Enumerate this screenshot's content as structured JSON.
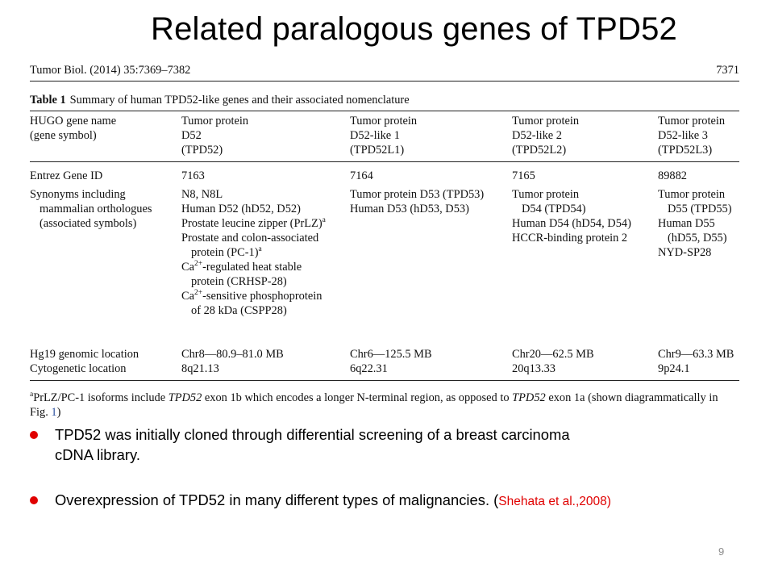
{
  "slide": {
    "title": "Related paralogous genes of  TPD52",
    "page_number": "9"
  },
  "paper": {
    "journal": "Tumor Biol. (2014) 35:7369–7382",
    "page": "7371",
    "caption_label": "Table 1",
    "caption_text": "Summary of human TPD52-like genes and their associated nomenclature",
    "header": {
      "label": [
        "HUGO gene name",
        "(gene symbol)"
      ],
      "genes": [
        [
          "Tumor protein",
          "D52",
          "(TPD52)"
        ],
        [
          "Tumor protein",
          "D52-like 1",
          "(TPD52L1)"
        ],
        [
          "Tumor protein",
          "D52-like 2",
          "(TPD52L2)"
        ],
        [
          "Tumor protein",
          "D52-like 3",
          "(TPD52L3)"
        ]
      ]
    },
    "entrez": {
      "label": "Entrez Gene ID",
      "values": [
        "7163",
        "7164",
        "7165",
        "89882"
      ]
    },
    "synonyms": {
      "label": [
        "Synonyms including",
        "mammalian orthologues",
        "(associated symbols)"
      ],
      "col1": [
        "N8, N8L",
        "Human D52 (hD52, D52)",
        "Prostate leucine zipper (PrLZ)",
        "Prostate and colon-associated",
        "protein (PC-1)",
        "Ca",
        "-regulated heat stable",
        "protein (CRHSP-28)",
        "Ca",
        "-sensitive phosphoprotein",
        "of 28 kDa (CSPP28)"
      ],
      "sup": {
        "a": "a",
        "ca": "2+"
      },
      "col2": [
        "Tumor protein D53 (TPD53)",
        "Human D53 (hD53, D53)"
      ],
      "col3": [
        "Tumor protein",
        "D54 (TPD54)",
        "Human D54 (hD54, D54)",
        "HCCR-binding protein 2"
      ],
      "col4": [
        "Tumor protein",
        "D55 (TPD55)",
        "Human D55",
        "(hD55, D55)",
        "NYD-SP28"
      ]
    },
    "hg19": {
      "label": "Hg19 genomic location",
      "values": [
        "Chr8—80.9–81.0 MB",
        "Chr6—125.5 MB",
        "Chr20—62.5 MB",
        "Chr9—63.3 MB"
      ]
    },
    "cyto": {
      "label": "Cytogenetic location",
      "values": [
        "8q21.13",
        "6q22.31",
        "20q13.33",
        "9p24.1"
      ]
    },
    "footnote": {
      "mark": "a",
      "t1": "PrLZ/PC-1 isoforms include ",
      "i1": "TPD52",
      "t2": " exon 1b which encodes a longer N-terminal region, as opposed to ",
      "i2": "TPD52",
      "t3": " exon 1a (shown diagrammatically in",
      "fig": "Fig.",
      "fignum": "1",
      "close": ")"
    }
  },
  "bullets": [
    {
      "line1": "TPD52 was initially cloned through differential screening of a  breast carcinoma",
      "line2": "cDNA library."
    },
    {
      "text": "Overexpression of TPD52 in many different types of malignancies. (",
      "citation": "Shehata et al.,2008)"
    }
  ],
  "colors": {
    "bullet": "#e00000",
    "citation": "#e00000"
  }
}
